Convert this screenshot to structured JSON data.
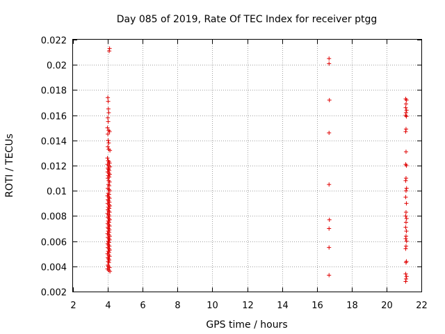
{
  "chart_data": {
    "type": "scatter",
    "title": "Day 085 of 2019, Rate Of TEC Index for receiver ptgg",
    "xlabel": "GPS time / hours",
    "ylabel": "ROTI / TECUs",
    "xlim": [
      2,
      22
    ],
    "ylim": [
      0.002,
      0.022
    ],
    "grid": true,
    "xticks": [
      2,
      4,
      6,
      8,
      10,
      12,
      14,
      16,
      18,
      20,
      22
    ],
    "xtick_labels": [
      "2",
      "4",
      "6",
      "8",
      "10",
      "12",
      "14",
      "16",
      "18",
      "20",
      "22"
    ],
    "yticks": [
      0.002,
      0.004,
      0.006,
      0.008,
      0.01,
      0.012,
      0.014,
      0.016,
      0.018,
      0.02,
      0.022
    ],
    "ytick_labels": [
      "0.002",
      "0.004",
      "0.006",
      "0.008",
      "0.01",
      "0.012",
      "0.014",
      "0.016",
      "0.018",
      "0.02",
      "0.022"
    ],
    "marker": "+",
    "color": "#e00000",
    "series": [
      {
        "name": "ROTI",
        "points": [
          [
            4.1,
            0.0213
          ],
          [
            4.08,
            0.0211
          ],
          [
            4.0,
            0.0174
          ],
          [
            4.02,
            0.0171
          ],
          [
            4.03,
            0.0165
          ],
          [
            4.05,
            0.0162
          ],
          [
            4.0,
            0.0158
          ],
          [
            4.02,
            0.0155
          ],
          [
            3.98,
            0.015
          ],
          [
            4.05,
            0.0148
          ],
          [
            4.1,
            0.0147
          ],
          [
            4.0,
            0.0145
          ],
          [
            4.02,
            0.014
          ],
          [
            4.05,
            0.0138
          ],
          [
            4.0,
            0.0135
          ],
          [
            4.05,
            0.0133
          ],
          [
            4.12,
            0.0132
          ],
          [
            3.98,
            0.0126
          ],
          [
            4.02,
            0.0124
          ],
          [
            4.06,
            0.0123
          ],
          [
            4.1,
            0.0122
          ],
          [
            3.98,
            0.0121
          ],
          [
            4.05,
            0.012
          ],
          [
            4.12,
            0.0119
          ],
          [
            4.0,
            0.0118
          ],
          [
            4.04,
            0.0117
          ],
          [
            4.08,
            0.0116
          ],
          [
            3.99,
            0.0115
          ],
          [
            4.06,
            0.0114
          ],
          [
            4.11,
            0.0113
          ],
          [
            4.02,
            0.0112
          ],
          [
            4.08,
            0.0111
          ],
          [
            4.0,
            0.011
          ],
          [
            4.05,
            0.0108
          ],
          [
            4.1,
            0.0107
          ],
          [
            4.03,
            0.0105
          ],
          [
            4.08,
            0.0104
          ],
          [
            4.0,
            0.0102
          ],
          [
            4.06,
            0.0101
          ],
          [
            4.11,
            0.01
          ],
          [
            4.02,
            0.0098
          ],
          [
            4.07,
            0.0097
          ],
          [
            3.98,
            0.0096
          ],
          [
            4.05,
            0.0095
          ],
          [
            4.1,
            0.0094
          ],
          [
            4.0,
            0.0093
          ],
          [
            4.04,
            0.0092
          ],
          [
            4.09,
            0.0091
          ],
          [
            3.99,
            0.009
          ],
          [
            4.06,
            0.0089
          ],
          [
            4.12,
            0.0088
          ],
          [
            4.02,
            0.0087
          ],
          [
            4.08,
            0.0086
          ],
          [
            4.0,
            0.0085
          ],
          [
            4.05,
            0.0084
          ],
          [
            4.1,
            0.0083
          ],
          [
            3.98,
            0.0082
          ],
          [
            4.04,
            0.0081
          ],
          [
            4.09,
            0.008
          ],
          [
            4.0,
            0.0079
          ],
          [
            4.06,
            0.0078
          ],
          [
            4.11,
            0.0077
          ],
          [
            4.02,
            0.0076
          ],
          [
            4.07,
            0.0075
          ],
          [
            3.99,
            0.0074
          ],
          [
            4.05,
            0.0073
          ],
          [
            4.1,
            0.0072
          ],
          [
            4.0,
            0.0071
          ],
          [
            4.04,
            0.007
          ],
          [
            4.09,
            0.0069
          ],
          [
            4.02,
            0.0068
          ],
          [
            4.08,
            0.0067
          ],
          [
            3.98,
            0.0066
          ],
          [
            4.05,
            0.0065
          ],
          [
            4.11,
            0.0064
          ],
          [
            4.0,
            0.0063
          ],
          [
            4.06,
            0.0062
          ],
          [
            4.1,
            0.0061
          ],
          [
            4.02,
            0.006
          ],
          [
            4.07,
            0.0059
          ],
          [
            3.99,
            0.0058
          ],
          [
            4.04,
            0.0057
          ],
          [
            4.09,
            0.0056
          ],
          [
            4.0,
            0.0055
          ],
          [
            4.06,
            0.0054
          ],
          [
            4.11,
            0.0053
          ],
          [
            4.02,
            0.0052
          ],
          [
            4.07,
            0.0051
          ],
          [
            3.98,
            0.005
          ],
          [
            4.05,
            0.0049
          ],
          [
            4.1,
            0.0048
          ],
          [
            4.0,
            0.0047
          ],
          [
            4.04,
            0.0046
          ],
          [
            4.08,
            0.0045
          ],
          [
            4.02,
            0.0044
          ],
          [
            4.06,
            0.0043
          ],
          [
            4.0,
            0.0041
          ],
          [
            4.03,
            0.004
          ],
          [
            4.1,
            0.0039
          ],
          [
            3.98,
            0.0038
          ],
          [
            4.05,
            0.0037
          ],
          [
            4.12,
            0.0036
          ],
          [
            16.7,
            0.0205
          ],
          [
            16.7,
            0.0201
          ],
          [
            16.72,
            0.0172
          ],
          [
            16.7,
            0.0146
          ],
          [
            16.7,
            0.0105
          ],
          [
            16.72,
            0.0077
          ],
          [
            16.7,
            0.007
          ],
          [
            16.7,
            0.0055
          ],
          [
            16.7,
            0.0033
          ],
          [
            21.1,
            0.0173
          ],
          [
            21.15,
            0.0172
          ],
          [
            21.12,
            0.0169
          ],
          [
            21.1,
            0.0166
          ],
          [
            21.15,
            0.0164
          ],
          [
            21.12,
            0.0162
          ],
          [
            21.1,
            0.016
          ],
          [
            21.14,
            0.0159
          ],
          [
            21.12,
            0.0149
          ],
          [
            21.1,
            0.0147
          ],
          [
            21.12,
            0.0131
          ],
          [
            21.1,
            0.0121
          ],
          [
            21.14,
            0.012
          ],
          [
            21.12,
            0.011
          ],
          [
            21.1,
            0.0108
          ],
          [
            21.15,
            0.0102
          ],
          [
            21.12,
            0.01
          ],
          [
            21.1,
            0.0095
          ],
          [
            21.14,
            0.009
          ],
          [
            21.12,
            0.0083
          ],
          [
            21.1,
            0.008
          ],
          [
            21.15,
            0.0078
          ],
          [
            21.12,
            0.0075
          ],
          [
            21.1,
            0.0071
          ],
          [
            21.14,
            0.0068
          ],
          [
            21.12,
            0.0064
          ],
          [
            21.1,
            0.0062
          ],
          [
            21.15,
            0.006
          ],
          [
            21.12,
            0.0056
          ],
          [
            21.1,
            0.0054
          ],
          [
            21.14,
            0.0044
          ],
          [
            21.12,
            0.0043
          ],
          [
            21.1,
            0.0034
          ],
          [
            21.15,
            0.0032
          ],
          [
            21.12,
            0.003
          ],
          [
            21.1,
            0.0028
          ]
        ]
      }
    ]
  }
}
